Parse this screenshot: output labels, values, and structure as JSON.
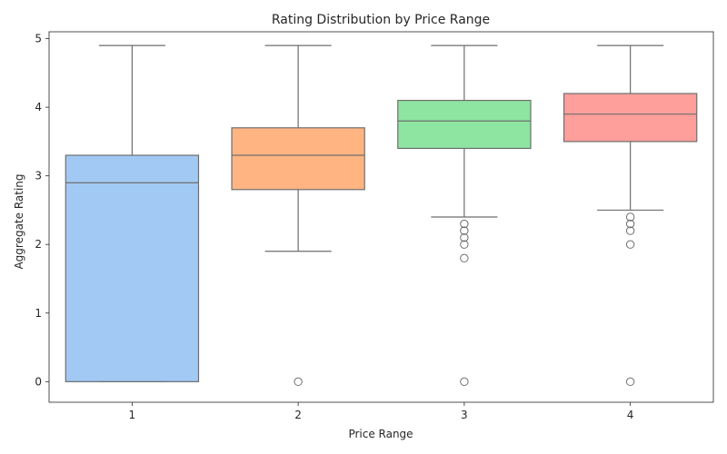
{
  "chart_data": {
    "type": "box",
    "title": "Rating Distribution by Price Range",
    "xlabel": "Price Range",
    "ylabel": "Aggregate Rating",
    "categories": [
      "1",
      "2",
      "3",
      "4"
    ],
    "ylim": [
      -0.3,
      5.1
    ],
    "yticks": [
      0,
      1,
      2,
      3,
      4,
      5
    ],
    "grid": false,
    "legend": "none",
    "boxes": [
      {
        "category": "1",
        "whisker_low": 0.0,
        "q1": 0.0,
        "median": 2.9,
        "q3": 3.3,
        "whisker_high": 4.9,
        "outliers": [],
        "color": "#a1c9f4"
      },
      {
        "category": "2",
        "whisker_low": 1.9,
        "q1": 2.8,
        "median": 3.3,
        "q3": 3.7,
        "whisker_high": 4.9,
        "outliers": [
          0.0
        ],
        "color": "#ffb482"
      },
      {
        "category": "3",
        "whisker_low": 2.4,
        "q1": 3.4,
        "median": 3.8,
        "q3": 4.1,
        "whisker_high": 4.9,
        "outliers": [
          2.3,
          2.2,
          2.1,
          2.0,
          1.8,
          0.0
        ],
        "color": "#8de5a1"
      },
      {
        "category": "4",
        "whisker_low": 2.5,
        "q1": 3.5,
        "median": 3.9,
        "q3": 4.2,
        "whisker_high": 4.9,
        "outliers": [
          2.4,
          2.3,
          2.2,
          2.0,
          0.0
        ],
        "color": "#ff9f9b"
      }
    ],
    "edge_color": "#6e6e6e"
  }
}
